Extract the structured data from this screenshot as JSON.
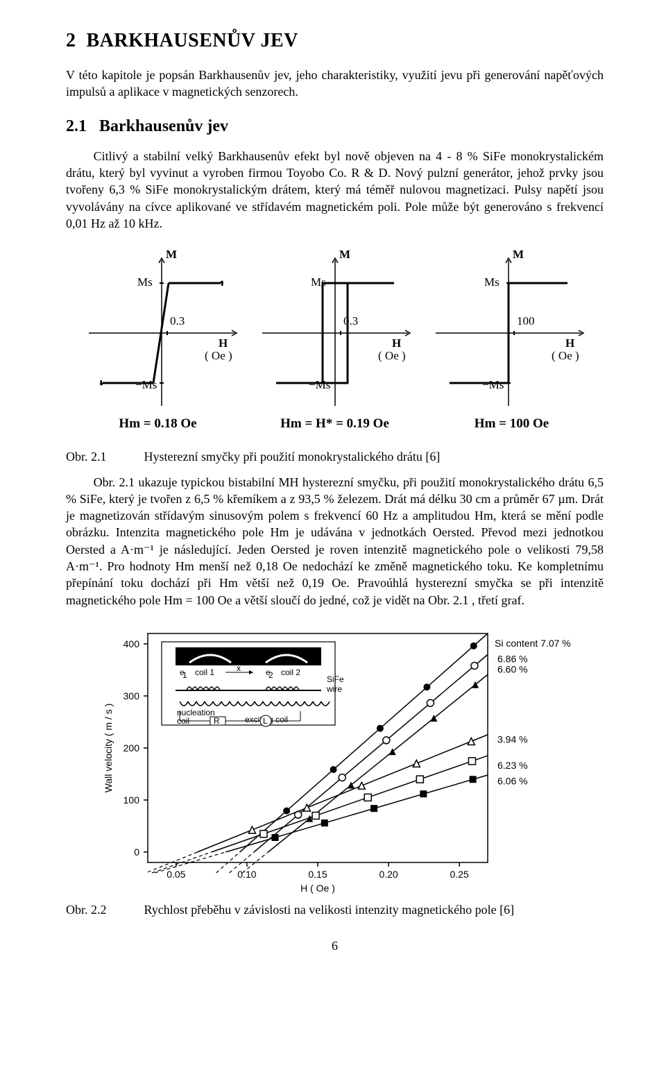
{
  "chapter_title": "2  BARKHAUSENŮV JEV",
  "intro": "V této kapitole je popsán Barkhausenův jev, jeho charakteristiky, využití jevu při generování napěťových impulsů a aplikace v magnetických senzorech.",
  "section_title": "2.1   Barkhausenův jev",
  "para_21": "Citlivý a stabilní velký Barkhausenův efekt byl nově objeven na 4 - 8 % SiFe monokrystalickém drátu, který byl vyvinut a vyroben firmou Toyobo Co. R & D. Nový pulzní generátor, jehož prvky jsou tvořeny 6,3 % SiFe monokrystalickým drátem, který má téměř nulovou magnetizaci. Pulsy napětí jsou vyvolávány na cívce aplikované ve střídavém magnetickém poli. Pole může být generováno s frekvencí 0,01 Hz až 10 kHz.",
  "fig21_hm": [
    "Hm  =  0.18  Oe",
    "Hm  =  H*  =  0.19  Oe",
    "Hm  =  100  Oe"
  ],
  "fig21_caption_label": "Obr. 2.1",
  "fig21_caption_text": "Hysterezní smyčky při použití monokrystalického drátu [6]",
  "para_after_fig21": "Obr. 2.1 ukazuje typickou bistabilní MH hysterezní smyčku, při použití monokrystalického drátu 6,5 % SiFe, který je tvořen z 6,5 % křemíkem a z 93,5 % železem. Drát má délku 30 cm a průměr 67 µm. Drát je magnetizován střídavým sinusovým polem s frekvencí 60 Hz a amplitudou Hm, která se mění podle obrázku. Intenzita magnetického pole Hm je udávána v jednotkách Oersted. Převod mezi jednotkou Oersted a A·m⁻¹ je následující. Jeden Oersted je roven intenzitě magnetického pole o velikosti 79,58 A·m⁻¹. Pro hodnoty Hm menší než 0,18 Oe nedochází ke změně magnetického toku. Ke kompletnímu přepínání toku dochází při Hm větší než 0,19 Oe. Pravoúhlá hysterezní smyčka se při intenzitě magnetického pole Hm = 100 Oe a větší sloučí do jedné, což je vidět na Obr. 2.1 , třetí graf.",
  "fig21": {
    "y_label": "M",
    "ms_label": "Ms",
    "neg_ms_label": "−Ms",
    "x_label_top": "H",
    "x_label_bottom": "( Oe )",
    "coercive_labels": [
      "0.3",
      "0.3",
      "100"
    ],
    "stroke": "#000000",
    "stroke_width": 2
  },
  "fig22": {
    "y_label": "Wall velocity  ( m / s )",
    "x_label": "H  ( Oe )",
    "y_ticks": [
      0,
      100,
      200,
      300,
      400
    ],
    "x_ticks": [
      0.05,
      0.1,
      0.15,
      0.2,
      0.25
    ],
    "axis_range": {
      "xmin": 0.03,
      "xmax": 0.27,
      "ymin": -20,
      "ymax": 420
    },
    "si_content_label": "Si content 7.07 %",
    "right_labels": [
      {
        "text": "6.86 %",
        "y": 365
      },
      {
        "text": "6.60 %",
        "y": 345
      },
      {
        "text": "3.94 %",
        "y": 210
      },
      {
        "text": "6.23 %",
        "y": 160
      },
      {
        "text": "6.06 %",
        "y": 130
      }
    ],
    "series": [
      {
        "marker": "circle_filled",
        "xi": 0.095,
        "slope": 2400,
        "color": "#000"
      },
      {
        "marker": "circle_open",
        "xi": 0.105,
        "slope": 2300,
        "color": "#000"
      },
      {
        "marker": "triangle_filled",
        "xi": 0.115,
        "slope": 2200,
        "color": "#000"
      },
      {
        "marker": "triangle_open",
        "xi": 0.065,
        "slope": 1100,
        "color": "#000"
      },
      {
        "marker": "square_open",
        "xi": 0.075,
        "slope": 950,
        "color": "#000"
      },
      {
        "marker": "square_filled",
        "xi": 0.085,
        "slope": 800,
        "color": "#000"
      }
    ],
    "inset": {
      "labels": {
        "coil1": "coil 1",
        "coil2": "coil 2",
        "e1": "e",
        "e2": "e",
        "wire": "SiFe\nwire",
        "nucleation": "nucleation\ncoil",
        "exciting": "exciting coil",
        "R": "R"
      }
    }
  },
  "fig22_caption_label": "Obr. 2.2",
  "fig22_caption_text": "Rychlost přeběhu v závislosti na velikosti intenzity magnetického pole [6]",
  "page_number": "6"
}
